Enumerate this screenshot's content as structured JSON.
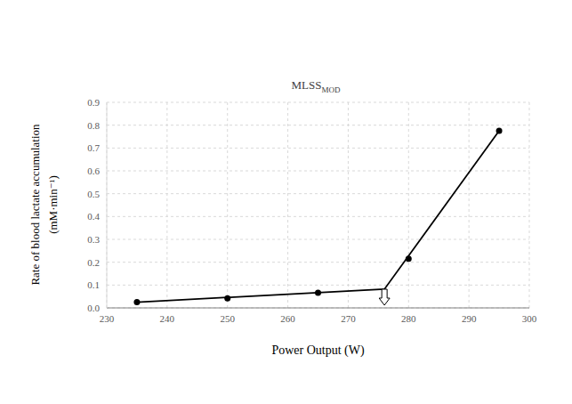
{
  "chart_data": {
    "type": "scatter",
    "title": "MLSS",
    "title_subscript": "MOD",
    "xlabel": "Power Output (W)",
    "ylabel": [
      "Rate of blood lactate accumulation",
      "(mM·min⁻¹)"
    ],
    "xlim": [
      230,
      300
    ],
    "xticks": [
      230,
      240,
      250,
      260,
      270,
      280,
      290,
      300
    ],
    "ylim": [
      0,
      0.9
    ],
    "yticks": [
      {
        "value": 0,
        "label": "0.0"
      },
      0.1,
      0.2,
      0.3,
      0.4,
      0.5,
      0.6,
      0.7,
      0.8,
      0.9
    ],
    "grid": true,
    "mlss_power": 276,
    "series": [
      {
        "type": "scatter",
        "color": "#000000",
        "marker": "circle",
        "x": [
          235,
          250,
          265,
          280,
          295
        ],
        "values": [
          0.025,
          0.042,
          0.066,
          0.215,
          0.775
        ]
      },
      {
        "type": "line",
        "color": "#000000",
        "line_style": "solid",
        "marker": "none",
        "x": [
          235,
          276,
          295
        ],
        "values": [
          0.025,
          0.082,
          0.775
        ]
      }
    ]
  }
}
